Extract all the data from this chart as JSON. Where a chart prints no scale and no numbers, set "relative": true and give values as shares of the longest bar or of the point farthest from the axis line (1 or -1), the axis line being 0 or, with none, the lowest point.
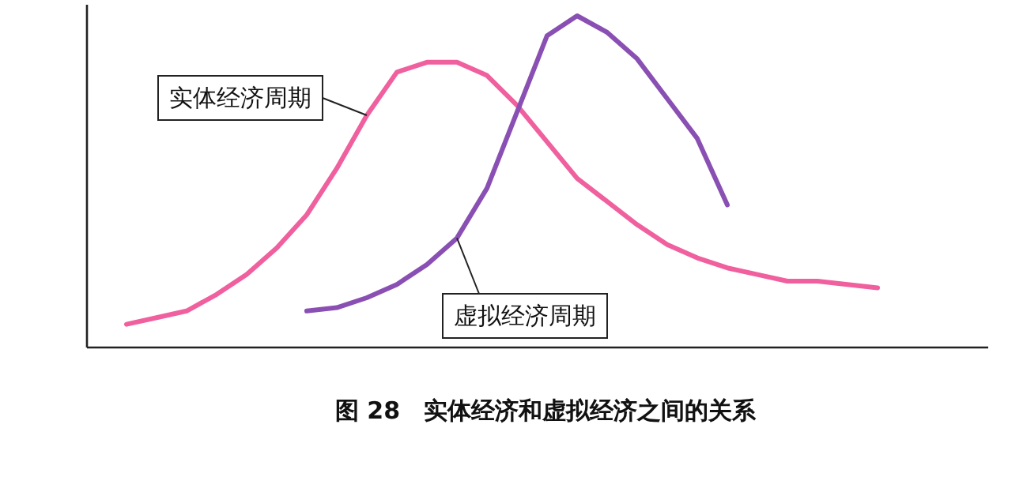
{
  "chart_data": {
    "type": "line",
    "title": "图 28　实体经济和虚拟经济之间的关系",
    "relative": true,
    "legend": false,
    "marker": "none",
    "line_style": "solid",
    "categories": [
      null,
      null,
      null,
      null,
      null,
      null,
      null,
      null,
      null,
      null,
      null,
      null,
      null,
      null,
      null,
      null,
      null,
      null,
      null,
      null,
      null,
      null,
      null,
      null,
      null,
      null
    ],
    "series": [
      {
        "name": "实体经济周期",
        "color": "#f0609e",
        "values": [
          0.07,
          0.09,
          0.11,
          0.16,
          0.22,
          0.3,
          0.4,
          0.54,
          0.7,
          0.83,
          0.86,
          0.86,
          0.82,
          0.73,
          0.62,
          0.51,
          0.44,
          0.37,
          0.31,
          0.27,
          0.24,
          0.22,
          0.2,
          0.2,
          0.19,
          0.18
        ]
      },
      {
        "name": "虚拟经济周期",
        "color": "#8a4fb3",
        "values": [
          null,
          null,
          null,
          null,
          null,
          null,
          0.11,
          0.12,
          0.15,
          0.19,
          0.25,
          0.33,
          0.48,
          0.71,
          0.94,
          1,
          0.95,
          0.87,
          0.75,
          0.63,
          0.43,
          null,
          null,
          null,
          null,
          null
        ]
      }
    ]
  }
}
